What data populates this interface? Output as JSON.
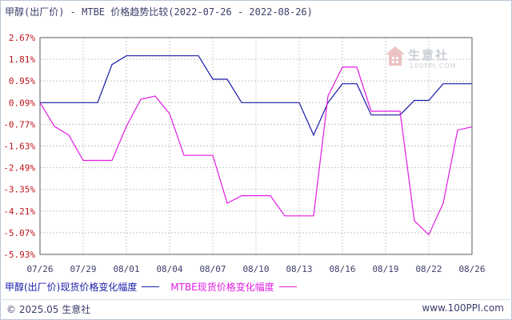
{
  "title": "甲醇(出厂价) - MTBE 价格趋势比较(2022-07-26 - 2022-08-26)",
  "watermark": {
    "text": "生意社",
    "url": "100PPI.COM"
  },
  "footer": {
    "copyright": "© 2025.05 生意社",
    "site": "www.100PPI.com"
  },
  "chart_data": {
    "type": "line",
    "title": "甲醇(出厂价) - MTBE 价格趋势比较(2022-07-26 - 2022-08-26)",
    "xlabel": "",
    "ylabel": "",
    "grid": true,
    "legend_position": "bottom-left",
    "ylim": [
      -5.93,
      2.67
    ],
    "yticks": [
      "2.67%",
      "1.81%",
      "0.95%",
      "0.09%",
      "-0.77%",
      "-1.63%",
      "-2.49%",
      "-3.35%",
      "-4.21%",
      "-5.07%",
      "-5.93%"
    ],
    "ytick_values": [
      2.67,
      1.81,
      0.95,
      0.09,
      -0.77,
      -1.63,
      -2.49,
      -3.35,
      -4.21,
      -5.07,
      -5.93
    ],
    "xticks": [
      "07/26",
      "07/29",
      "08/01",
      "08/04",
      "08/07",
      "08/10",
      "08/13",
      "08/16",
      "08/19",
      "08/22",
      "08/26"
    ],
    "xtick_days": [
      0,
      3,
      6,
      9,
      12,
      15,
      18,
      21,
      24,
      27,
      30
    ],
    "x_days": [
      0,
      1,
      2,
      3,
      4,
      5,
      6,
      7,
      8,
      9,
      10,
      11,
      12,
      13,
      14,
      15,
      16,
      17,
      18,
      19,
      20,
      21,
      22,
      23,
      24,
      25,
      26,
      27,
      28,
      29,
      30
    ],
    "series": [
      {
        "name": "甲醇(出厂价)现货价格变化幅度",
        "color": "#1a1aa8",
        "values": [
          0.09,
          0.09,
          0.09,
          0.09,
          0.09,
          1.6,
          1.95,
          1.95,
          1.95,
          1.95,
          1.95,
          1.95,
          1.02,
          1.02,
          0.09,
          0.09,
          0.09,
          0.09,
          0.09,
          -1.2,
          0.09,
          0.84,
          0.84,
          -0.4,
          -0.4,
          -0.4,
          0.18,
          0.18,
          0.84,
          0.84,
          0.84
        ]
      },
      {
        "name": "MTBE现货价格变化幅度",
        "color": "#e11be1",
        "values": [
          0.09,
          -0.85,
          -1.2,
          -2.2,
          -2.2,
          -2.2,
          -0.85,
          0.22,
          0.35,
          -0.35,
          -2.0,
          -2.0,
          -2.0,
          -3.9,
          -3.6,
          -3.6,
          -3.6,
          -4.4,
          -4.4,
          -4.4,
          0.35,
          1.5,
          1.5,
          -0.25,
          -0.25,
          -0.25,
          -4.6,
          -5.15,
          -3.9,
          -1.0,
          -0.87
        ]
      }
    ]
  }
}
